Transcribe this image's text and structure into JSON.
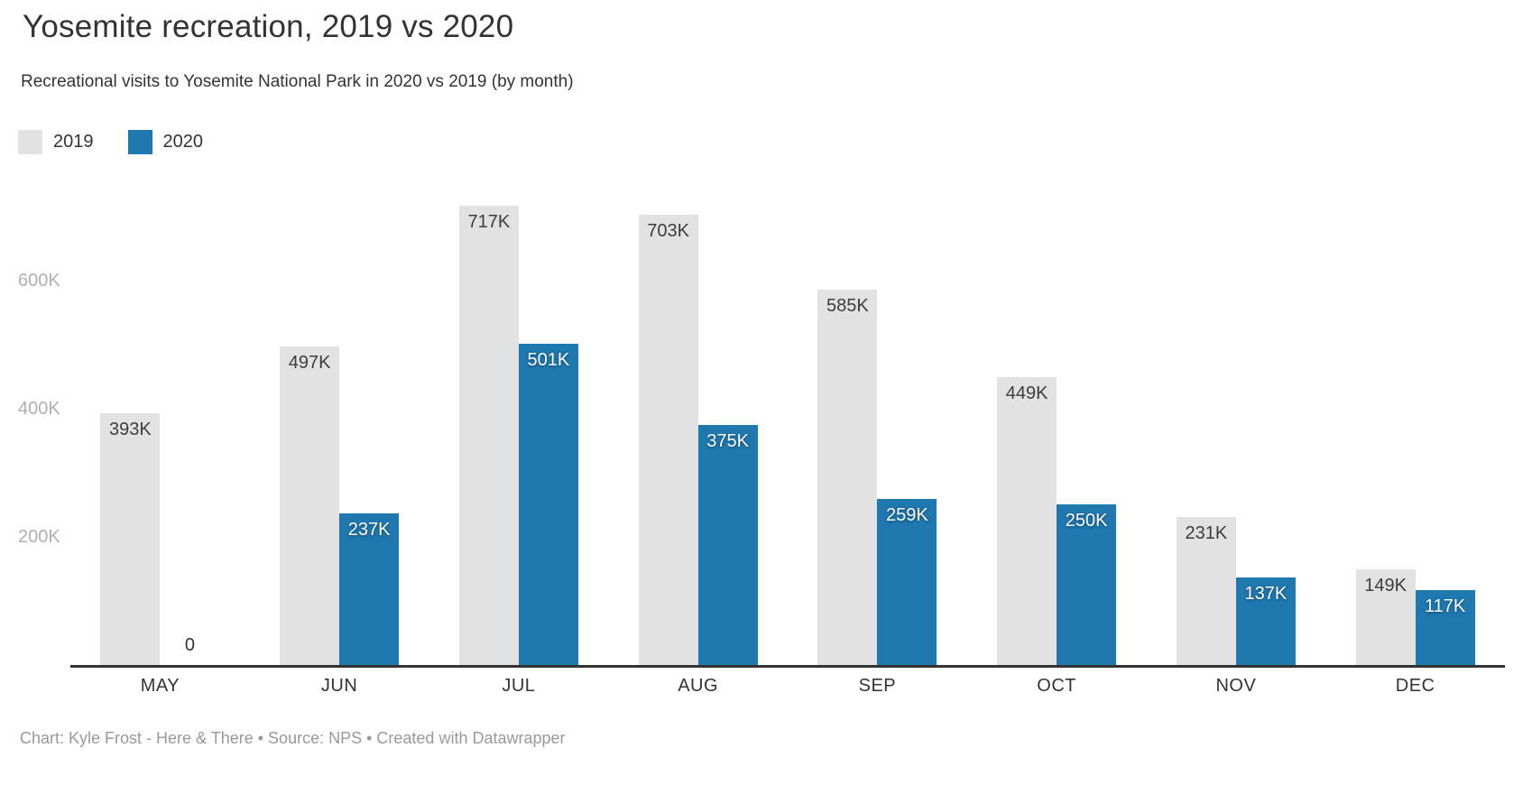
{
  "header": {
    "title": "Yosemite recreation, 2019 vs 2020",
    "subtitle": "Recreational visits to Yosemite National Park in 2020 vs 2019 (by month)"
  },
  "legend": [
    {
      "label": "2019",
      "color": "#e2e2e2"
    },
    {
      "label": "2020",
      "color": "#1f78b0"
    }
  ],
  "chart_data": {
    "type": "bar",
    "title": "Yosemite recreation, 2019 vs 2020",
    "subtitle": "Recreational visits to Yosemite National Park in 2020 vs 2019 (by month)",
    "categories": [
      "MAY",
      "JUN",
      "JUL",
      "AUG",
      "SEP",
      "OCT",
      "NOV",
      "DEC"
    ],
    "series": [
      {
        "name": "2019",
        "color": "#e2e2e2",
        "values": [
          393,
          497,
          717,
          703,
          585,
          449,
          231,
          149
        ],
        "labels": [
          "393K",
          "497K",
          "717K",
          "703K",
          "585K",
          "449K",
          "231K",
          "149K"
        ]
      },
      {
        "name": "2020",
        "color": "#1f78b0",
        "values": [
          0,
          237,
          501,
          375,
          259,
          250,
          137,
          117
        ],
        "labels": [
          "0",
          "237K",
          "501K",
          "375K",
          "259K",
          "250K",
          "137K",
          "117K"
        ]
      }
    ],
    "yticks": [
      {
        "value": 200,
        "label": "200K"
      },
      {
        "value": 400,
        "label": "400K"
      },
      {
        "value": 600,
        "label": "600K"
      }
    ],
    "ylim": [
      0,
      770
    ],
    "unit": "K",
    "grid": false,
    "legend_position": "top-left",
    "xlabel": "",
    "ylabel": ""
  },
  "footer": {
    "text": "Chart: Kyle Frost - Here & There • Source: NPS • Created with Datawrapper"
  },
  "colors": {
    "bar_2019": "#e2e2e2",
    "bar_2020": "#1f78b0",
    "axis_line": "#333333",
    "ytick_text": "#b0b0b0",
    "xtick_text": "#333333",
    "value_label_dark": "#3d3d3d",
    "value_label_light": "#ffffff",
    "footer_text": "#999999",
    "background": "#ffffff"
  }
}
